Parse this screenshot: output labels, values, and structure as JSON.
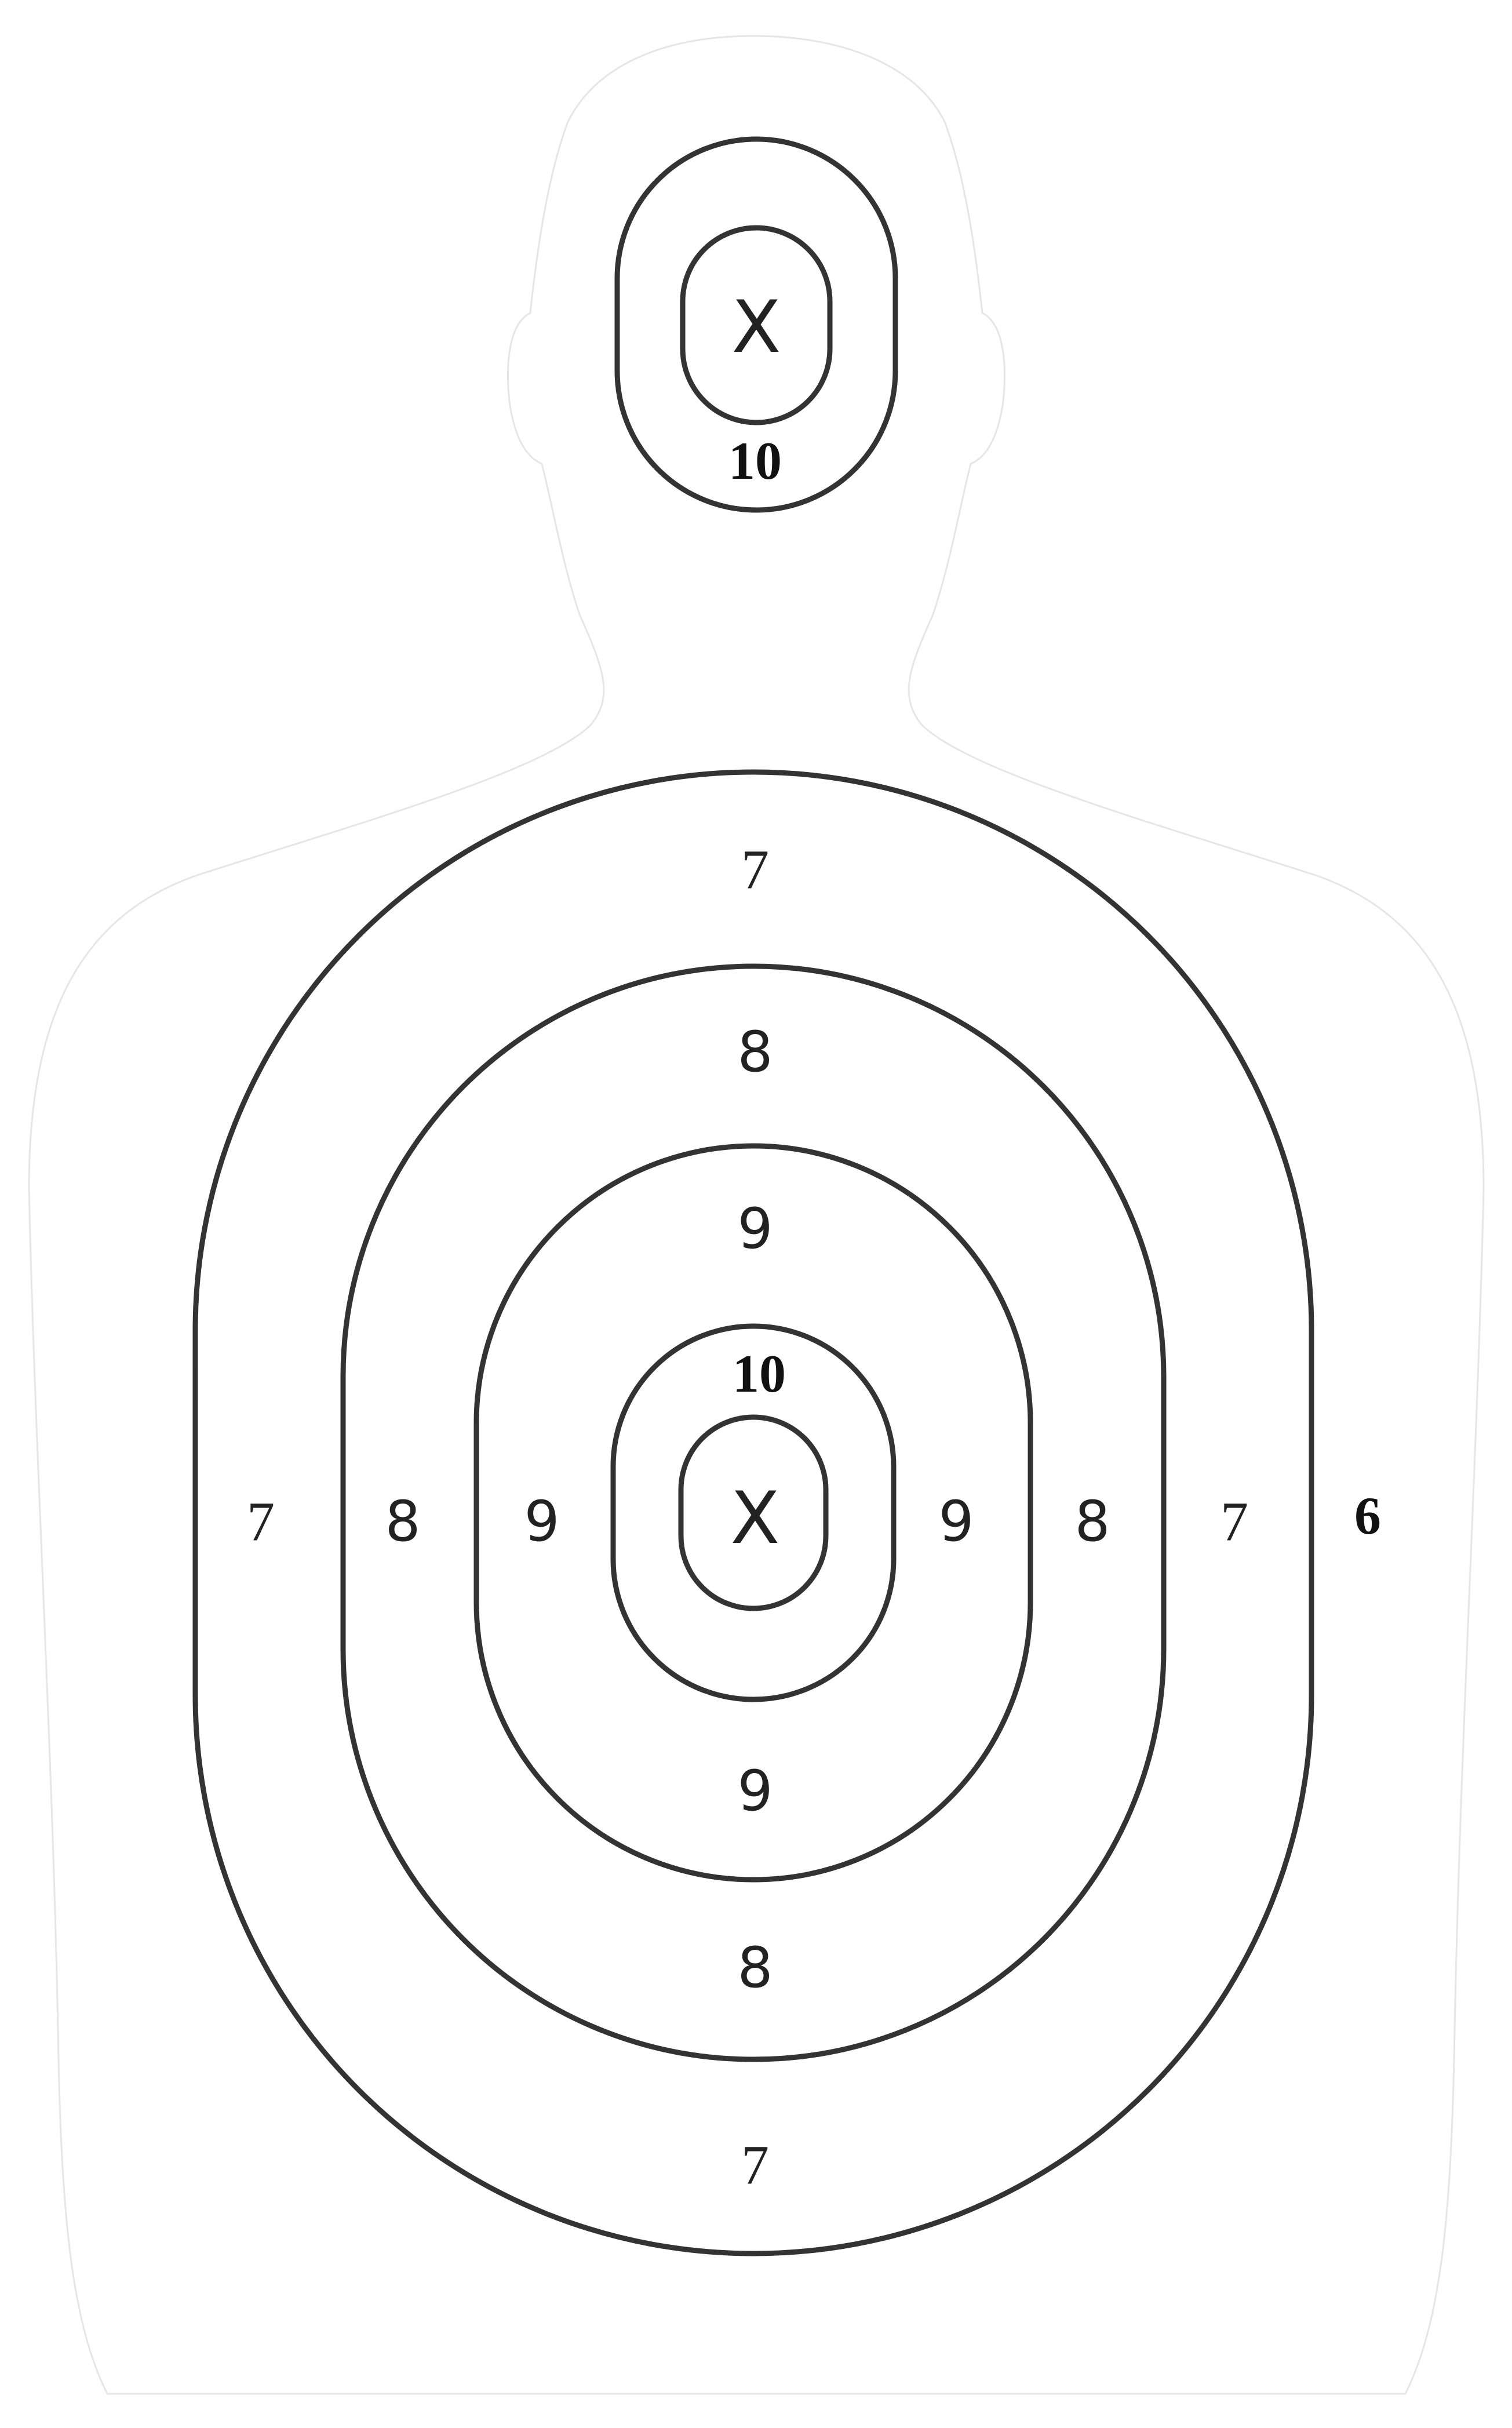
{
  "target": {
    "head": {
      "center_mark": "X",
      "score_inner": "10"
    },
    "body": {
      "center_mark": "X",
      "score_10": "10",
      "score_9_top": "9",
      "score_9_bottom": "9",
      "score_9_left": "9",
      "score_9_right": "9",
      "score_8_top": "8",
      "score_8_bottom": "8",
      "score_8_left": "8",
      "score_8_right": "8",
      "score_7_top": "7",
      "score_7_bottom": "7",
      "score_7_left": "7",
      "score_7_right": "7",
      "score_6_outer": "6"
    },
    "colors": {
      "rings": "#333333",
      "silhouette_outline": "#e6e6e6",
      "background": "#ffffff"
    }
  }
}
